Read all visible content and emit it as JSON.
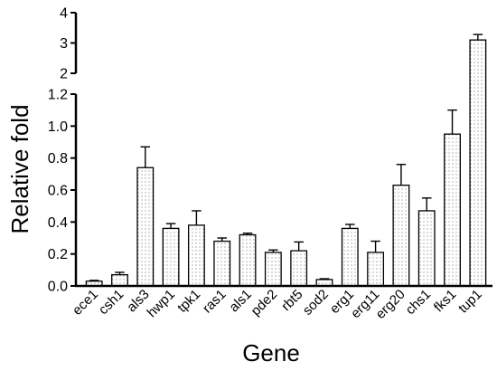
{
  "chart_data": {
    "type": "bar",
    "xlabel": "Gene",
    "ylabel": "Relative fold",
    "categories": [
      "ece1",
      "csh1",
      "als3",
      "hwp1",
      "tpk1",
      "ras1",
      "als1",
      "pde2",
      "rbt5",
      "sod2",
      "erg1",
      "erg11",
      "erg20",
      "chs1",
      "fks1",
      "tup1"
    ],
    "values": [
      0.03,
      0.07,
      0.74,
      0.36,
      0.38,
      0.28,
      0.32,
      0.21,
      0.22,
      0.04,
      0.36,
      0.21,
      0.63,
      0.47,
      0.95,
      3.1
    ],
    "errors": [
      0.005,
      0.015,
      0.13,
      0.03,
      0.09,
      0.02,
      0.01,
      0.015,
      0.055,
      0.005,
      0.025,
      0.07,
      0.13,
      0.08,
      0.15,
      0.18
    ],
    "y_axis_segments": [
      {
        "range": [
          0,
          1.2
        ],
        "ticks": [
          "0.0",
          "0.2",
          "0.4",
          "0.6",
          "0.8",
          "1.0",
          "1.2"
        ]
      },
      {
        "range": [
          2,
          4
        ],
        "ticks": [
          "2",
          "3",
          "4"
        ]
      }
    ],
    "axis_break": [
      1.2,
      2
    ],
    "grid": false,
    "bar_fill": "dotted",
    "colors": {
      "bar_fill": "#ffffff",
      "dots": "#888888",
      "stroke": "#000000"
    }
  }
}
